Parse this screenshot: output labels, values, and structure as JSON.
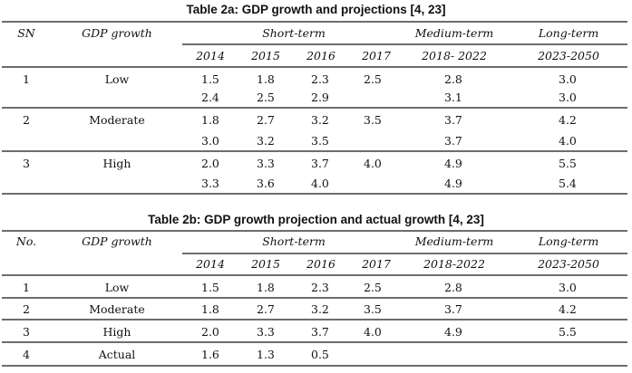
{
  "table_a": {
    "caption": "Table 2a: GDP growth and projections [4, 23]",
    "headers": {
      "col1": "SN",
      "col2": "GDP growth",
      "short_term": "Short-term",
      "medium_term": "Medium-term",
      "long_term": "Long-term",
      "years": [
        "2014",
        "2015",
        "2016",
        "2017",
        "2018- 2022",
        "2023-2050"
      ]
    },
    "groups": [
      {
        "id": "1",
        "label": "Low",
        "rows": [
          [
            "1.5",
            "1.8",
            "2.3",
            "2.5",
            "2.8",
            "3.0"
          ],
          [
            "2.4",
            "2.5",
            "2.9",
            "",
            "3.1",
            "3.0"
          ]
        ]
      },
      {
        "id": "2",
        "label": "Moderate",
        "rows": [
          [
            "1.8",
            "2.7",
            "3.2",
            "3.5",
            "3.7",
            "4.2"
          ],
          [
            "3.0",
            "3.2",
            "3.5",
            "",
            "3.7",
            "4.0"
          ]
        ]
      },
      {
        "id": "3",
        "label": "High",
        "rows": [
          [
            "2.0",
            "3.3",
            "3.7",
            "4.0",
            "4.9",
            "5.5"
          ],
          [
            "3.3",
            "3.6",
            "4.0",
            "",
            "4.9",
            "5.4"
          ]
        ]
      }
    ]
  },
  "table_b": {
    "caption": "Table 2b: GDP growth projection and actual growth [4, 23]",
    "headers": {
      "col1": "No.",
      "col2": "GDP growth",
      "short_term": "Short-term",
      "medium_term": "Medium-term",
      "long_term": "Long-term",
      "years": [
        "2014",
        "2015",
        "2016",
        "2017",
        "2018-2022",
        "2023-2050"
      ]
    },
    "rows": [
      {
        "id": "1",
        "label": "Low",
        "values": [
          "1.5",
          "1.8",
          "2.3",
          "2.5",
          "2.8",
          "3.0"
        ]
      },
      {
        "id": "2",
        "label": "Moderate",
        "values": [
          "1.8",
          "2.7",
          "3.2",
          "3.5",
          "3.7",
          "4.2"
        ]
      },
      {
        "id": "3",
        "label": "High",
        "values": [
          "2.0",
          "3.3",
          "3.7",
          "4.0",
          "4.9",
          "5.5"
        ]
      },
      {
        "id": "4",
        "label": "Actual",
        "values": [
          "1.6",
          "1.3",
          "0.5",
          "",
          "",
          ""
        ]
      }
    ]
  }
}
